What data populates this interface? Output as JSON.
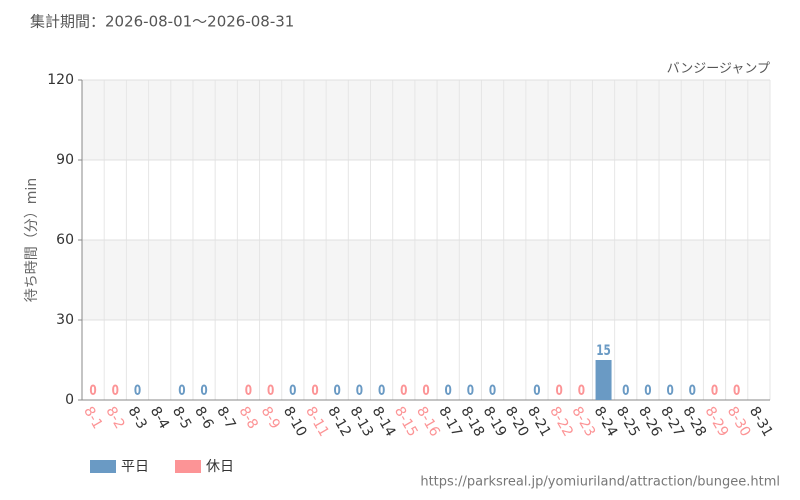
{
  "chart_data": {
    "type": "bar",
    "title": "集計期間：2026-08-01～2026-08-31",
    "subtitle": "バンジージャンプ",
    "y_label": "待ち時間（分）min",
    "source": "https://parksreal.jp/yomiuriland/attraction/bungee.html",
    "categories": [
      "8-1",
      "8-2",
      "8-3",
      "8-4",
      "8-5",
      "8-6",
      "8-7",
      "8-8",
      "8-9",
      "8-10",
      "8-11",
      "8-12",
      "8-13",
      "8-14",
      "8-15",
      "8-16",
      "8-17",
      "8-18",
      "8-19",
      "8-20",
      "8-21",
      "8-22",
      "8-23",
      "8-24",
      "8-25",
      "8-26",
      "8-27",
      "8-28",
      "8-29",
      "8-30",
      "8-31"
    ],
    "series": [
      {
        "name": "平日",
        "color": "#6a9ac4",
        "values": [
          null,
          null,
          0,
          null,
          0,
          0,
          null,
          null,
          null,
          0,
          null,
          0,
          0,
          0,
          null,
          null,
          0,
          0,
          0,
          null,
          0,
          null,
          null,
          15,
          0,
          0,
          0,
          0,
          null,
          null,
          null
        ]
      },
      {
        "name": "休日",
        "color": "#fc9496",
        "values": [
          0,
          0,
          null,
          null,
          null,
          null,
          null,
          0,
          0,
          null,
          0,
          null,
          null,
          null,
          0,
          0,
          null,
          null,
          null,
          null,
          null,
          0,
          0,
          null,
          null,
          null,
          null,
          null,
          0,
          0,
          null
        ]
      }
    ],
    "ylim": [
      0,
      120
    ],
    "yticks": [
      0,
      30,
      60,
      90,
      120
    ],
    "grid": true
  }
}
